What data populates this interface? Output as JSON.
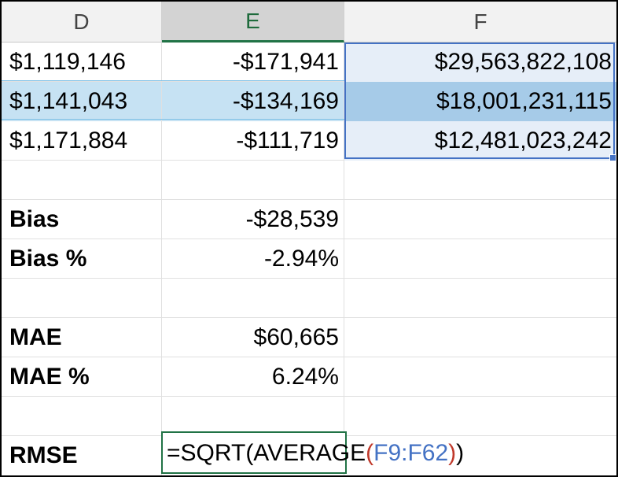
{
  "columns": {
    "d": "D",
    "e": "E",
    "f": "F"
  },
  "rows": [
    {
      "d": "$1,119,146",
      "e": "-$171,941",
      "f": "$29,563,822,108"
    },
    {
      "d": "$1,141,043",
      "e": "-$134,169",
      "f": "$18,001,231,115"
    },
    {
      "d": "$1,171,884",
      "e": "-$111,719",
      "f": "$12,481,023,242"
    }
  ],
  "metrics": {
    "bias_label": "Bias",
    "bias_value": "-$28,539",
    "bias_pct_label": "Bias %",
    "bias_pct_value": "-2.94%",
    "mae_label": "MAE",
    "mae_value": "$60,665",
    "mae_pct_label": "MAE %",
    "mae_pct_value": "6.24%",
    "rmse_label": "RMSE"
  },
  "formula": {
    "prefix": "=SQRT(AVERAGE",
    "open_paren": "(",
    "range_ref": "F9:F62",
    "close_paren_inner": ")",
    "close_paren_outer": ")"
  },
  "colors": {
    "active_column_accent": "#217346",
    "range_reference": "#4472c4",
    "selected_row": "#c6e2f3"
  }
}
